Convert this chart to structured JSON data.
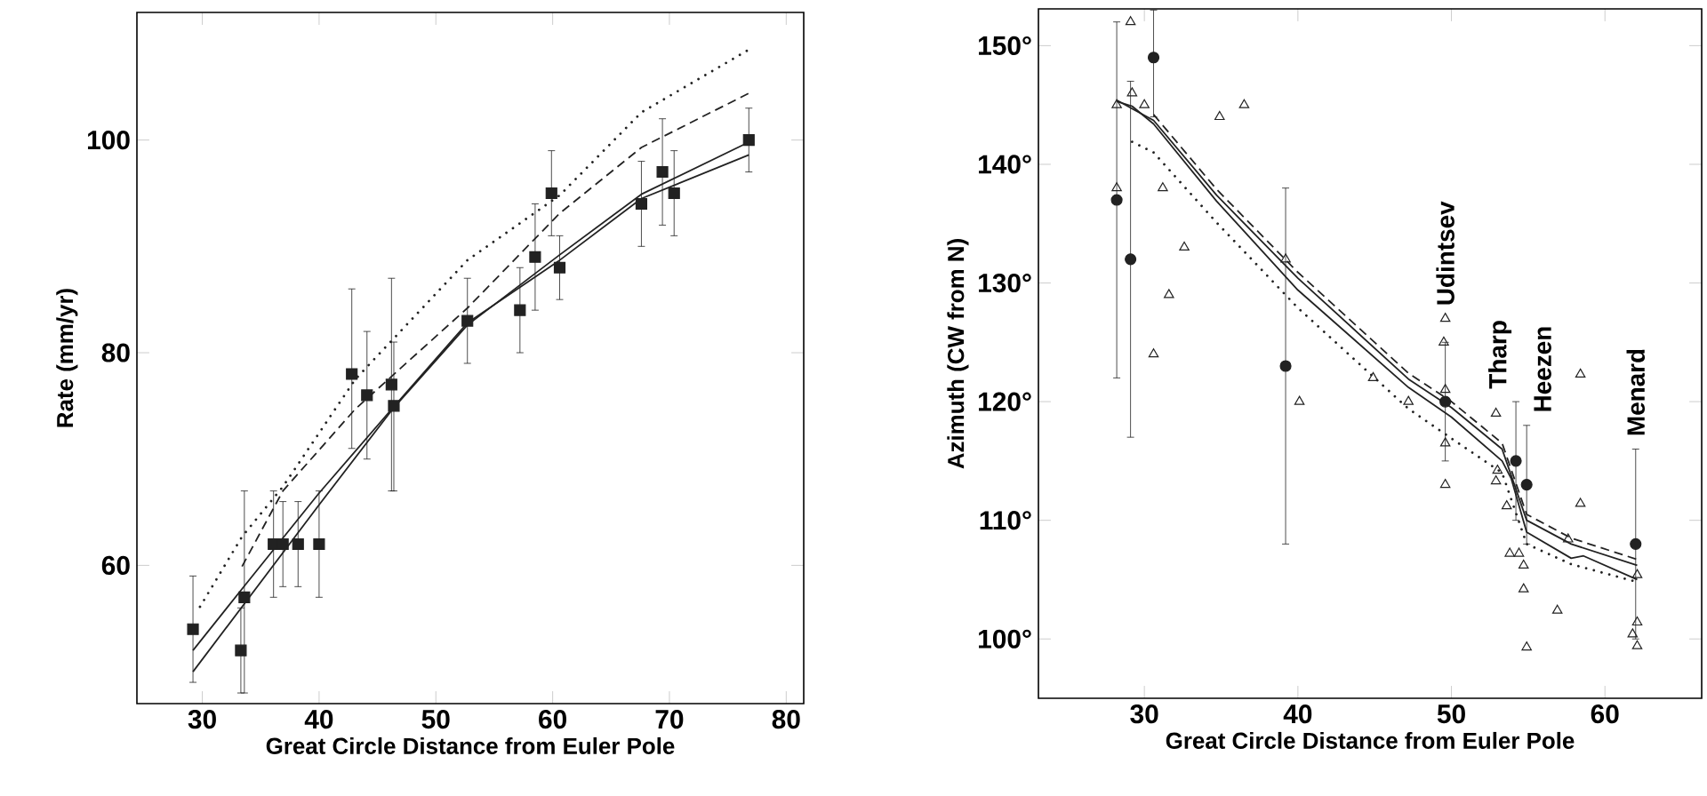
{
  "chart_data": [
    {
      "type": "scatter",
      "xlabel": "Great Circle Distance from Euler Pole",
      "ylabel": "Rate (mm/yr)",
      "xlim": [
        24.4,
        81.5
      ],
      "ylim": [
        47,
        112
      ],
      "xticks": [
        30,
        40,
        50,
        60,
        70,
        80
      ],
      "yticks": [
        60,
        80,
        100
      ],
      "series": [
        {
          "type": "line",
          "color": "#222222",
          "line_style": "dotted",
          "marker": "none",
          "x": [
            29.8,
            33.4,
            36.9,
            43.1,
            52.7,
            60.6,
            67.6,
            76.8
          ],
          "values": [
            56.1,
            62.7,
            67.4,
            77.5,
            88.7,
            94.8,
            102.6,
            108.5
          ]
        },
        {
          "type": "line",
          "color": "#222222",
          "line_style": "dashed",
          "marker": "none",
          "x": [
            33.4,
            36.9,
            43.1,
            52.7,
            60.6,
            67.6,
            76.8
          ],
          "values": [
            59.9,
            67,
            74.7,
            84.2,
            93.1,
            99.3,
            104.4
          ]
        },
        {
          "type": "line",
          "color": "#222222",
          "line_style": "solid",
          "marker": "none",
          "x": [
            29.2,
            40,
            46.3,
            52.7,
            60.6,
            67.6,
            76.8
          ],
          "values": [
            50,
            65.7,
            74.7,
            82.6,
            89.2,
            94.9,
            99.8
          ]
        },
        {
          "type": "line",
          "color": "#222222",
          "line_style": "solid",
          "marker": "none",
          "x": [
            29.2,
            33.7,
            40,
            46.3,
            52.7,
            60.6,
            67.6,
            76.8
          ],
          "values": [
            52,
            58.2,
            66.8,
            74.8,
            82.8,
            88.7,
            94.5,
            98.6
          ]
        },
        {
          "type": "scatter",
          "color": "#222222",
          "marker": "square",
          "x": [
            29.2,
            33.3,
            33.6,
            36.1,
            36.9,
            38.2,
            40,
            42.8,
            44.1,
            46.2,
            46.4,
            52.7,
            57.2,
            58.5,
            59.9,
            60.6,
            67.6,
            69.4,
            70.4,
            76.8
          ],
          "values": [
            54,
            52,
            57,
            62,
            62,
            62,
            62,
            78,
            76,
            77,
            75,
            83,
            84,
            89,
            95,
            88,
            94,
            97,
            95,
            100
          ],
          "errors": [
            5,
            4,
            [
              48,
              67
            ],
            5,
            4,
            4,
            5,
            [
              71,
              86
            ],
            6,
            10,
            [
              67,
              81
            ],
            4,
            4,
            5,
            4,
            3,
            4,
            5,
            4,
            3
          ]
        }
      ]
    },
    {
      "type": "scatter",
      "xlabel": "Great Circle Distance from Euler Pole",
      "ylabel": "Azimuth (CW from N)",
      "xlim": [
        23.1,
        66.3
      ],
      "ylim": [
        95,
        153.1
      ],
      "xticks": [
        30,
        40,
        50,
        60
      ],
      "yticks": [
        {
          "value": 100,
          "label": "100°"
        },
        {
          "value": 110,
          "label": "110°"
        },
        {
          "value": 120,
          "label": "120°"
        },
        {
          "value": 130,
          "label": "130°"
        },
        {
          "value": 140,
          "label": "140°"
        },
        {
          "value": 150,
          "label": "150°"
        }
      ],
      "series": [
        {
          "type": "line",
          "color": "#222222",
          "line_style": "dotted",
          "marker": "none",
          "x": [
            29.2,
            30.6,
            34.7,
            40,
            47.2,
            50,
            53.3,
            54.9,
            57.8,
            62.1
          ],
          "values": [
            141.9,
            141,
            135.1,
            127.9,
            119.4,
            116.9,
            114,
            108,
            106.3,
            104.8
          ]
        },
        {
          "type": "line",
          "color": "#222222",
          "line_style": "dashed",
          "marker": "none",
          "x": [
            30.6,
            34.7,
            40,
            47.2,
            50,
            53.3,
            54.9,
            57.8,
            62.1
          ],
          "values": [
            144.2,
            137.9,
            130.9,
            122.4,
            120,
            116.5,
            110.5,
            108.5,
            106.7
          ]
        },
        {
          "type": "line",
          "color": "#222222",
          "line_style": "solid",
          "marker": "none",
          "x": [
            28.2,
            30.6,
            34.7,
            40,
            47.2,
            50,
            53.3,
            54.9,
            57.8,
            62.1
          ],
          "values": [
            145.4,
            143.7,
            137.4,
            130.4,
            121.9,
            119.5,
            116,
            110,
            108,
            106.2
          ]
        },
        {
          "type": "line",
          "color": "#222222",
          "line_style": "solid",
          "marker": "none",
          "x": [
            28.2,
            29.2,
            30.6,
            34.7,
            40,
            47.2,
            50,
            53.3,
            53.9,
            54.9,
            57.8,
            58.6,
            62.1
          ],
          "values": [
            145.3,
            144.9,
            143.4,
            136.9,
            129.4,
            121.2,
            118.7,
            115,
            113.5,
            109,
            106.8,
            107,
            105
          ]
        },
        {
          "type": "scatter",
          "color": "#222222",
          "marker": "triangle",
          "x": [
            28.2,
            28.2,
            29.1,
            29.2,
            30,
            31.2,
            31.6,
            30.6,
            32.6,
            34.9,
            36.5,
            39.2,
            40.1,
            44.9,
            47.2,
            49.6,
            49.5,
            49.6,
            49.6,
            49.6,
            52.9,
            52.9,
            53,
            53.6,
            53.8,
            54.4,
            54.7,
            54.7,
            54.9,
            56.9,
            57.6,
            58.4,
            58.4,
            62.1,
            62.1,
            61.8,
            62.1
          ],
          "values": [
            145,
            138,
            152,
            146,
            145,
            138,
            129,
            124,
            133,
            144,
            145,
            132,
            120,
            122,
            120,
            127,
            125,
            121,
            116.5,
            113,
            119,
            113.3,
            114.2,
            111.2,
            107.2,
            107.2,
            106.2,
            104.2,
            99.3,
            102.4,
            108.4,
            111.4,
            122.3,
            105.4,
            101.4,
            100.4,
            99.4
          ]
        },
        {
          "type": "scatter",
          "color": "#222222",
          "marker": "circle",
          "x": [
            28.2,
            29.1,
            30.6,
            39.2,
            49.6,
            54.2,
            54.9,
            62
          ],
          "values": [
            137,
            132,
            149,
            123,
            120,
            115,
            113,
            108
          ],
          "errors": [
            15,
            15,
            [
              144,
              153
            ],
            15,
            5,
            5,
            5,
            8
          ]
        }
      ],
      "annotations": [
        {
          "text": "Udintsev",
          "x": 49.6,
          "y": 127
        },
        {
          "text": "Tharp",
          "x": 54.2,
          "y": 120
        },
        {
          "text": "Heezen",
          "x": 54.9,
          "y": 118
        },
        {
          "text": "Menard",
          "x": 62,
          "y": 116
        }
      ]
    }
  ]
}
